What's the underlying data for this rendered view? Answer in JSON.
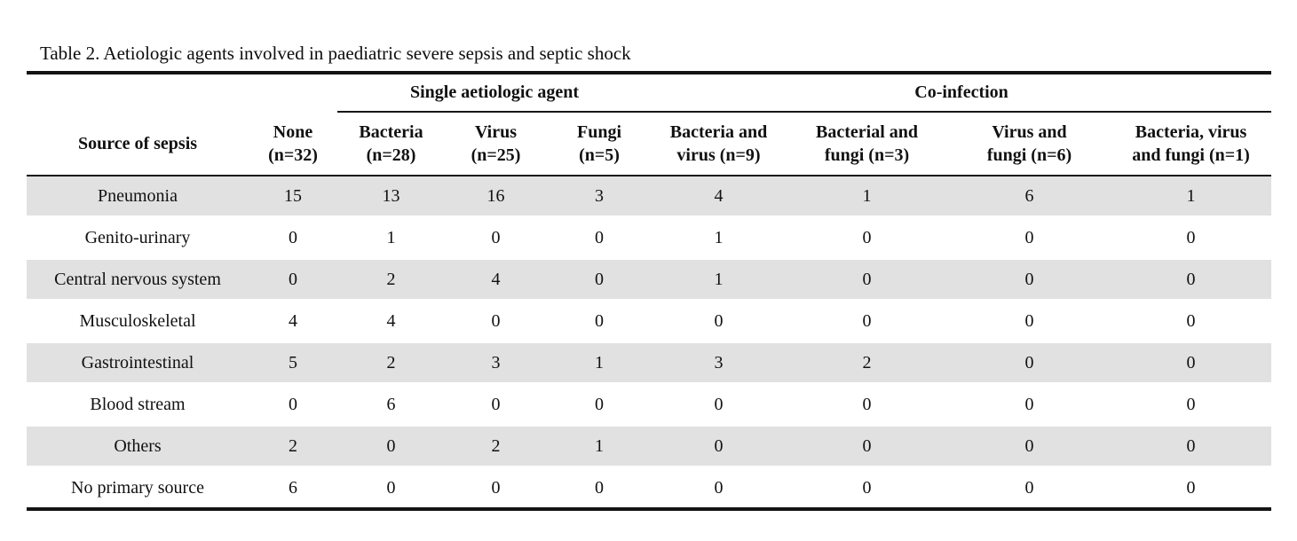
{
  "title": "Table 2. Aetiologic agents involved in paediatric severe sepsis and septic shock",
  "table": {
    "column_groups": [
      {
        "label": "Single aetiologic agent",
        "span": 3
      },
      {
        "label": "Co-infection",
        "span": 4
      }
    ],
    "columns": [
      {
        "label": "Source of sepsis"
      },
      {
        "label": "None\n(n=32)"
      },
      {
        "label": "Bacteria\n(n=28)"
      },
      {
        "label": "Virus\n(n=25)"
      },
      {
        "label": "Fungi\n(n=5)"
      },
      {
        "label": "Bacteria and\nvirus (n=9)"
      },
      {
        "label": "Bacterial and\nfungi (n=3)"
      },
      {
        "label": "Virus and\nfungi (n=6)"
      },
      {
        "label": "Bacteria, virus\nand fungi (n=1)"
      }
    ],
    "rows": [
      {
        "source": "Pneumonia",
        "values": [
          15,
          13,
          16,
          3,
          4,
          1,
          6,
          1
        ],
        "shaded": true
      },
      {
        "source": "Genito-urinary",
        "values": [
          0,
          1,
          0,
          0,
          1,
          0,
          0,
          0
        ],
        "shaded": false
      },
      {
        "source": "Central nervous system",
        "values": [
          0,
          2,
          4,
          0,
          1,
          0,
          0,
          0
        ],
        "shaded": true
      },
      {
        "source": "Musculoskeletal",
        "values": [
          4,
          4,
          0,
          0,
          0,
          0,
          0,
          0
        ],
        "shaded": false
      },
      {
        "source": "Gastrointestinal",
        "values": [
          5,
          2,
          3,
          1,
          3,
          2,
          0,
          0
        ],
        "shaded": true
      },
      {
        "source": "Blood stream",
        "values": [
          0,
          6,
          0,
          0,
          0,
          0,
          0,
          0
        ],
        "shaded": false
      },
      {
        "source": "Others",
        "values": [
          2,
          0,
          2,
          1,
          0,
          0,
          0,
          0
        ],
        "shaded": true
      },
      {
        "source": "No primary source",
        "values": [
          6,
          0,
          0,
          0,
          0,
          0,
          0,
          0
        ],
        "shaded": false
      }
    ]
  },
  "colors": {
    "row_shade": "#e1e1e1",
    "rule": "#141414",
    "text": "#111111"
  }
}
